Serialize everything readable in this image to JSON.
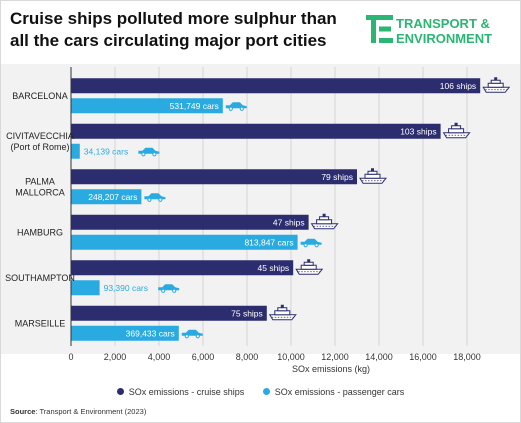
{
  "header": {
    "title_line1": "Cruise ships polluted more sulphur than",
    "title_line2": "all the cars circulating major port cities"
  },
  "logo": {
    "line1": "TRANSPORT &",
    "line2": "ENVIRONMENT",
    "mark": "TE"
  },
  "colors": {
    "cruise": "#2b2d6e",
    "cars": "#29abe2",
    "logo": "#2bb673"
  },
  "chart_data": {
    "type": "bar",
    "orientation": "horizontal",
    "categories": [
      [
        "BARCELONA"
      ],
      [
        "CIVITAVECCHIA",
        "(Port of Rome)"
      ],
      [
        "PALMA",
        "MALLORCA"
      ],
      [
        "HAMBURG"
      ],
      [
        "SOUTHAMPTON"
      ],
      [
        "MARSEILLE"
      ]
    ],
    "series": [
      {
        "name": "SOx emissions - cruise ships",
        "values": [
          18600,
          16800,
          13000,
          10800,
          10100,
          8900
        ],
        "labels": [
          "106 ships",
          "103 ships",
          "79 ships",
          "47 ships",
          "45 ships",
          "75 ships"
        ],
        "icon": "cruise-ship-icon"
      },
      {
        "name": "SOx emissions - passenger cars",
        "values": [
          6900,
          400,
          3200,
          10300,
          1300,
          4900
        ],
        "labels": [
          "531,749 cars",
          "34,139 cars",
          "248,207 cars",
          "813,847 cars",
          "93,390 cars",
          "369,433 cars"
        ],
        "icon": "car-icon"
      }
    ],
    "xlabel": "SOx emissions (kg)",
    "xlim": [
      0,
      20000
    ],
    "xticks": [
      0,
      2000,
      4000,
      6000,
      8000,
      10000,
      12000,
      14000,
      16000,
      18000
    ],
    "xtick_labels": [
      "0",
      "2,000",
      "4,000",
      "6,000",
      "8,000",
      "10,000",
      "12,000",
      "14,000",
      "16,000",
      "18,000"
    ],
    "grid": true,
    "legend": "bottom"
  },
  "source": {
    "label": "Source",
    "text": ": Transport & Environment (2023)"
  }
}
